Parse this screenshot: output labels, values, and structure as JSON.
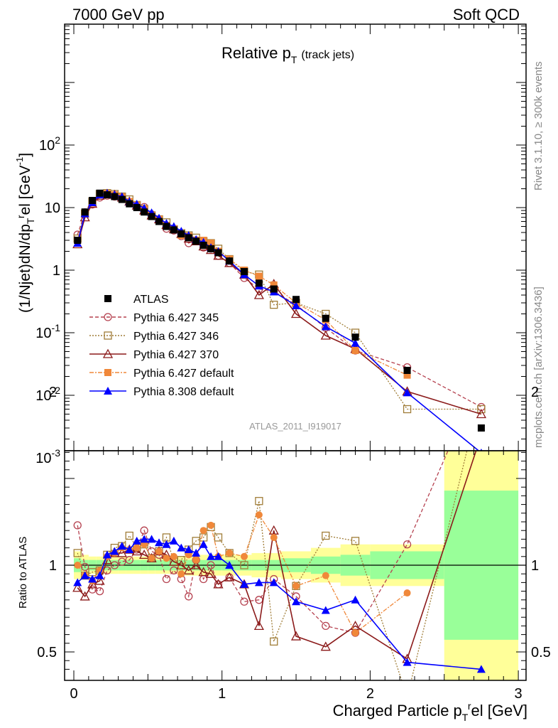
{
  "header": {
    "left": "7000 GeV pp",
    "right": "Soft QCD"
  },
  "side": {
    "rivet": "Rivet 3.1.10, ≥ 300k events",
    "mcplots": "mcplots.cern.ch [arXiv:1306.3436]"
  },
  "chart_data": {
    "type": "line",
    "title": "Relative p_T (track jets)",
    "title_main": "Relative p",
    "title_sub": "T",
    "title_suffix": "(track jets)",
    "analysis": "ATLAS_2011_I919017",
    "xlabel": "Charged Particle p_T^rel [GeV]",
    "ylabel_top": "(1/Njet)dN/dp_T^rel [GeV^-1]",
    "ylabel_bottom": "Ratio to ATLAS",
    "xlim": [
      -0.05,
      3.05
    ],
    "ylim_top": [
      0.00015,
      1000
    ],
    "ylim_bottom": [
      0.35,
      2.3
    ],
    "log_y_top": true,
    "legend_position": "middle-left",
    "x_ticks": [
      "0",
      "1",
      "2",
      "3"
    ],
    "y_ticks_top": [
      "10^-3",
      "10^-2",
      "10^-1",
      "1",
      "10",
      "10^2"
    ],
    "y_ticks_bottom": [
      "0.5",
      "1",
      "2"
    ],
    "x": [
      0.025,
      0.075,
      0.125,
      0.175,
      0.225,
      0.275,
      0.325,
      0.375,
      0.425,
      0.475,
      0.525,
      0.575,
      0.625,
      0.675,
      0.725,
      0.775,
      0.825,
      0.875,
      0.925,
      0.975,
      1.05,
      1.15,
      1.25,
      1.35,
      1.5,
      1.7,
      1.9,
      2.25,
      2.75
    ],
    "series": [
      {
        "name": "ATLAS",
        "color": "#000000",
        "marker": "square-filled",
        "dash": "",
        "values": [
          3.0,
          8.5,
          13.0,
          17.0,
          16.0,
          15.0,
          13.5,
          11.5,
          10.0,
          8.5,
          7.2,
          6.0,
          5.0,
          4.4,
          3.8,
          3.3,
          2.9,
          2.5,
          2.2,
          1.9,
          1.4,
          0.95,
          0.62,
          0.5,
          0.34,
          0.17,
          0.085,
          0.025,
          0.003
        ]
      },
      {
        "name": "Pythia 6.427 345",
        "color": "#b5414f",
        "marker": "circle-open",
        "dash": "5,3",
        "values": [
          3.7,
          8.4,
          11.2,
          14.5,
          15.5,
          15.0,
          13.8,
          11.8,
          10.9,
          10.2,
          7.8,
          6.4,
          4.6,
          4.3,
          3.5,
          2.7,
          3.0,
          2.3,
          2.2,
          1.7,
          1.3,
          0.75,
          0.5,
          0.46,
          0.28,
          0.12,
          0.052,
          0.028,
          0.0065
        ]
      },
      {
        "name": "Pythia 6.427 346",
        "color": "#a07d38",
        "marker": "square-open",
        "dash": "2,2",
        "values": [
          3.2,
          8.0,
          12.5,
          16.5,
          17.0,
          16.5,
          15.0,
          13.5,
          11.0,
          9.5,
          7.5,
          6.5,
          5.8,
          4.5,
          3.9,
          3.6,
          3.3,
          2.9,
          2.7,
          2.2,
          1.5,
          0.95,
          0.85,
          0.28,
          0.3,
          0.2,
          0.1,
          0.006,
          0.006
        ]
      },
      {
        "name": "Pythia 6.427 370",
        "color": "#8b1a1a",
        "marker": "triangle-open",
        "dash": "",
        "values": [
          2.6,
          7.0,
          11.5,
          15.5,
          16.5,
          16.0,
          14.5,
          12.5,
          10.8,
          9.0,
          7.5,
          6.5,
          5.3,
          4.5,
          3.8,
          3.2,
          2.9,
          2.4,
          2.1,
          1.7,
          1.3,
          0.85,
          0.4,
          0.6,
          0.2,
          0.09,
          0.055,
          0.0115,
          0.005
        ]
      },
      {
        "name": "Pythia 6.427 default",
        "color": "#f0883a",
        "marker": "square-filled",
        "dash": "6,2,2,2",
        "values": [
          3.0,
          8.0,
          11.8,
          16.5,
          16.8,
          16.0,
          14.8,
          12.5,
          11.0,
          9.5,
          7.5,
          6.5,
          5.2,
          4.6,
          3.6,
          3.5,
          3.0,
          3.0,
          2.7,
          2.0,
          1.5,
          1.0,
          0.8,
          0.58,
          0.3,
          0.16,
          0.052,
          0.021,
          null
        ]
      },
      {
        "name": "Pythia 8.308 default",
        "color": "#0000ff",
        "marker": "triangle-filled",
        "dash": "",
        "values": [
          2.7,
          8.0,
          12.0,
          16.0,
          17.0,
          16.2,
          15.0,
          12.5,
          11.4,
          9.8,
          8.3,
          6.8,
          5.6,
          5.0,
          4.2,
          3.6,
          3.1,
          2.8,
          2.3,
          2.0,
          1.4,
          0.85,
          0.56,
          0.45,
          0.27,
          0.125,
          0.068,
          0.011,
          0.0012
        ]
      }
    ],
    "ratio": {
      "uncertainty_bins": [
        [
          0,
          0.05
        ],
        [
          0.05,
          0.1
        ],
        [
          0.1,
          0.15
        ],
        [
          0.15,
          0.2
        ],
        [
          0.2,
          0.25
        ],
        [
          0.25,
          0.3
        ],
        [
          0.3,
          0.35
        ],
        [
          0.35,
          0.4
        ],
        [
          0.4,
          0.45
        ],
        [
          0.45,
          0.5
        ],
        [
          0.5,
          0.55
        ],
        [
          0.55,
          0.6
        ],
        [
          0.6,
          0.65
        ],
        [
          0.65,
          0.7
        ],
        [
          0.7,
          0.75
        ],
        [
          0.75,
          0.8
        ],
        [
          0.8,
          0.85
        ],
        [
          0.85,
          0.9
        ],
        [
          0.9,
          0.95
        ],
        [
          0.95,
          1.0
        ],
        [
          1.0,
          1.1
        ],
        [
          1.1,
          1.2
        ],
        [
          1.2,
          1.3
        ],
        [
          1.3,
          1.4
        ],
        [
          1.4,
          1.6
        ],
        [
          1.6,
          1.8
        ],
        [
          1.8,
          2.0
        ],
        [
          2.0,
          2.5
        ],
        [
          2.5,
          3.0
        ]
      ],
      "stat_band": [
        0.04,
        0.03,
        0.03,
        0.03,
        0.03,
        0.03,
        0.03,
        0.03,
        0.03,
        0.03,
        0.03,
        0.03,
        0.03,
        0.03,
        0.03,
        0.03,
        0.03,
        0.03,
        0.03,
        0.03,
        0.03,
        0.03,
        0.03,
        0.03,
        0.04,
        0.05,
        0.06,
        0.08,
        0.43
      ],
      "total_band": [
        0.08,
        0.06,
        0.05,
        0.05,
        0.05,
        0.05,
        0.05,
        0.05,
        0.05,
        0.05,
        0.05,
        0.05,
        0.05,
        0.05,
        0.05,
        0.06,
        0.06,
        0.06,
        0.06,
        0.06,
        0.06,
        0.06,
        0.07,
        0.07,
        0.08,
        0.1,
        0.12,
        0.12,
        0.75
      ],
      "values": {
        "Pythia 6.427 345": [
          1.23,
          0.99,
          0.86,
          0.85,
          0.97,
          1.0,
          1.02,
          1.03,
          1.09,
          1.2,
          1.08,
          1.06,
          0.92,
          0.97,
          0.92,
          0.82,
          1.03,
          0.92,
          1.0,
          0.89,
          0.93,
          0.79,
          0.8,
          0.92,
          0.82,
          0.65,
          0.61,
          1.12,
          2.1
        ],
        "Pythia 6.427 346": [
          1.07,
          0.94,
          0.96,
          0.97,
          1.06,
          1.1,
          1.11,
          1.17,
          1.1,
          1.12,
          1.04,
          1.08,
          1.16,
          1.02,
          1.03,
          1.09,
          1.14,
          1.16,
          1.22,
          1.16,
          1.07,
          1.0,
          1.37,
          0.56,
          0.88,
          1.17,
          1.14,
          0.24,
          2.0
        ],
        "Pythia 6.427 370": [
          0.87,
          0.82,
          0.89,
          0.91,
          1.03,
          1.07,
          1.07,
          1.09,
          1.08,
          1.06,
          1.04,
          1.08,
          1.06,
          1.02,
          1.0,
          0.97,
          1.0,
          0.96,
          0.95,
          0.89,
          0.93,
          0.89,
          0.65,
          1.2,
          0.59,
          0.53,
          0.65,
          0.46,
          1.75
        ],
        "Pythia 6.427 default": [
          1.0,
          0.94,
          0.91,
          0.97,
          1.05,
          1.07,
          1.1,
          1.09,
          1.1,
          1.12,
          1.04,
          1.08,
          1.04,
          1.05,
          0.95,
          1.06,
          1.03,
          1.2,
          1.23,
          1.05,
          1.07,
          1.05,
          1.29,
          1.16,
          0.88,
          0.94,
          0.61,
          0.84,
          null
        ],
        "Pythia 8.308 default": [
          0.9,
          0.94,
          0.92,
          0.94,
          1.06,
          1.08,
          1.11,
          1.09,
          1.14,
          1.15,
          1.15,
          1.13,
          1.12,
          1.14,
          1.1,
          1.09,
          1.07,
          1.12,
          1.05,
          1.05,
          1.0,
          0.89,
          0.9,
          0.9,
          0.79,
          0.74,
          0.8,
          0.44,
          0.4
        ]
      }
    }
  }
}
